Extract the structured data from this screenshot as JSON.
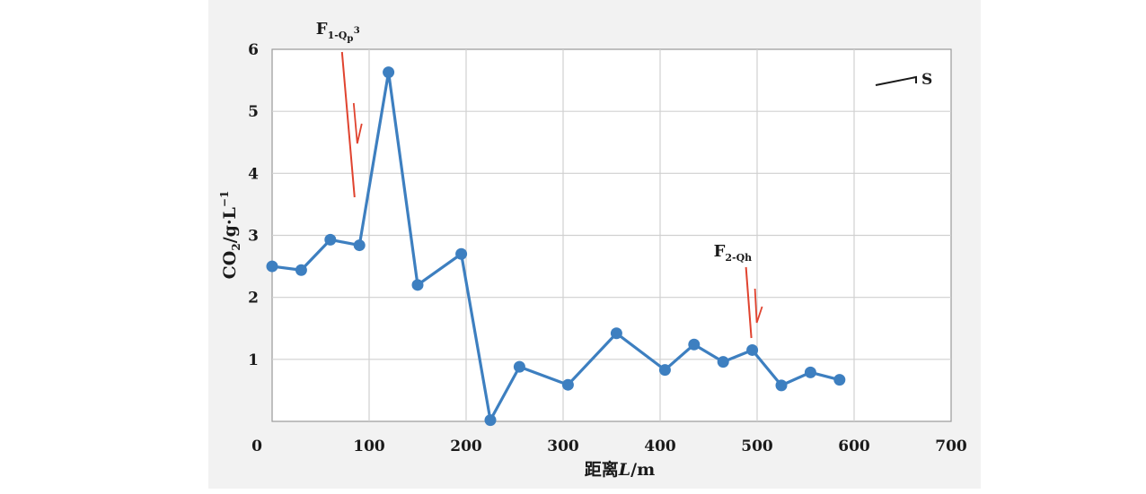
{
  "chart_data": {
    "type": "line",
    "title": "",
    "xlabel": "距离L/m",
    "ylabel": "CO2/g·L-1",
    "xlim": [
      0,
      700
    ],
    "ylim": [
      0,
      6
    ],
    "xticks": [
      0,
      100,
      200,
      300,
      400,
      500,
      600,
      700
    ],
    "yticks": [
      1,
      2,
      3,
      4,
      5,
      6
    ],
    "grid": true,
    "series": [
      {
        "color": "#3d7fc0",
        "x": [
          0,
          30,
          60,
          90,
          120,
          150,
          195,
          225,
          255,
          305,
          355,
          405,
          435,
          465,
          495,
          525,
          555,
          585
        ],
        "y": [
          2.5,
          2.44,
          2.93,
          2.84,
          5.63,
          2.2,
          2.7,
          0.02,
          0.88,
          0.59,
          1.42,
          0.83,
          1.24,
          0.96,
          1.15,
          0.58,
          0.79,
          0.67
        ]
      }
    ],
    "annotations": [
      {
        "id": "f1",
        "text": "F",
        "subscript": "1-Q",
        "sub2": "p",
        "sup": "3",
        "x": 85,
        "color": "#e0432f"
      },
      {
        "id": "f2",
        "text": "F",
        "subscript": "2-Qh",
        "x": 495,
        "color": "#e0432f"
      }
    ],
    "direction": {
      "text": "S"
    }
  }
}
